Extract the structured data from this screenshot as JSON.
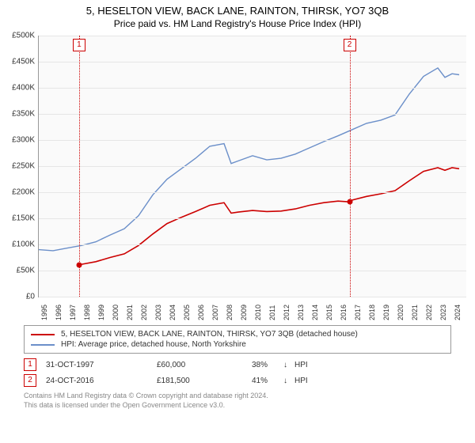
{
  "title": "5, HESELTON VIEW, BACK LANE, RAINTON, THIRSK, YO7 3QB",
  "subtitle": "Price paid vs. HM Land Registry's House Price Index (HPI)",
  "chart": {
    "type": "line",
    "background_color": "#fafafa",
    "grid_color": "#e6e6e6",
    "axis_color": "#999999",
    "label_fontsize": 10,
    "y": {
      "min": 0,
      "max": 500000,
      "step": 50000,
      "prefix": "£",
      "suffix": "K",
      "ticks": [
        "£0",
        "£50K",
        "£100K",
        "£150K",
        "£200K",
        "£250K",
        "£300K",
        "£350K",
        "£400K",
        "£450K",
        "£500K"
      ]
    },
    "x": {
      "min": 1995,
      "max": 2025,
      "ticks": [
        1995,
        1996,
        1997,
        1998,
        1999,
        2000,
        2001,
        2002,
        2003,
        2004,
        2005,
        2006,
        2007,
        2008,
        2009,
        2010,
        2011,
        2012,
        2013,
        2014,
        2015,
        2016,
        2017,
        2018,
        2019,
        2020,
        2021,
        2022,
        2023,
        2024
      ]
    },
    "series": [
      {
        "name": "hpi",
        "label": "HPI: Average price, detached house, North Yorkshire",
        "color": "#6b8fc9",
        "width": 1.4,
        "data": [
          [
            1995,
            90000
          ],
          [
            1996,
            88000
          ],
          [
            1997,
            93000
          ],
          [
            1998,
            98000
          ],
          [
            1999,
            105000
          ],
          [
            2000,
            118000
          ],
          [
            2001,
            130000
          ],
          [
            2002,
            155000
          ],
          [
            2003,
            195000
          ],
          [
            2004,
            225000
          ],
          [
            2005,
            245000
          ],
          [
            2006,
            265000
          ],
          [
            2007,
            288000
          ],
          [
            2008,
            293000
          ],
          [
            2008.5,
            255000
          ],
          [
            2009,
            260000
          ],
          [
            2010,
            270000
          ],
          [
            2011,
            262000
          ],
          [
            2012,
            265000
          ],
          [
            2013,
            273000
          ],
          [
            2014,
            285000
          ],
          [
            2015,
            297000
          ],
          [
            2016,
            308000
          ],
          [
            2017,
            320000
          ],
          [
            2018,
            332000
          ],
          [
            2019,
            338000
          ],
          [
            2020,
            348000
          ],
          [
            2021,
            388000
          ],
          [
            2022,
            422000
          ],
          [
            2023,
            438000
          ],
          [
            2023.5,
            420000
          ],
          [
            2024,
            427000
          ],
          [
            2024.5,
            425000
          ]
        ]
      },
      {
        "name": "property",
        "label": "5, HESELTON VIEW, BACK LANE, RAINTON, THIRSK, YO7 3QB (detached house)",
        "color": "#cc0000",
        "width": 1.6,
        "data": [
          [
            1997.83,
            60000
          ],
          [
            1998,
            62000
          ],
          [
            1999,
            67000
          ],
          [
            2000,
            75000
          ],
          [
            2001,
            82000
          ],
          [
            2002,
            98000
          ],
          [
            2003,
            120000
          ],
          [
            2004,
            140000
          ],
          [
            2005,
            152000
          ],
          [
            2006,
            163000
          ],
          [
            2007,
            175000
          ],
          [
            2008,
            180000
          ],
          [
            2008.5,
            160000
          ],
          [
            2009,
            162000
          ],
          [
            2010,
            165000
          ],
          [
            2011,
            163000
          ],
          [
            2012,
            164000
          ],
          [
            2013,
            168000
          ],
          [
            2014,
            175000
          ],
          [
            2015,
            180000
          ],
          [
            2016,
            183000
          ],
          [
            2016.81,
            181500
          ],
          [
            2017,
            185000
          ],
          [
            2018,
            192000
          ],
          [
            2019,
            197000
          ],
          [
            2020,
            203000
          ],
          [
            2021,
            222000
          ],
          [
            2022,
            240000
          ],
          [
            2023,
            247000
          ],
          [
            2023.5,
            242000
          ],
          [
            2024,
            247000
          ],
          [
            2024.5,
            245000
          ]
        ]
      }
    ],
    "markers": [
      {
        "idx": "1",
        "x": 1997.83,
        "y": 60000,
        "color": "#cc0000"
      },
      {
        "idx": "2",
        "x": 2016.81,
        "y": 181500,
        "color": "#cc0000"
      }
    ],
    "vline_color": "#cc0000"
  },
  "legend": {
    "border_color": "#999999",
    "rows": [
      {
        "color": "#cc0000",
        "label": "5, HESELTON VIEW, BACK LANE, RAINTON, THIRSK, YO7 3QB (detached house)"
      },
      {
        "color": "#6b8fc9",
        "label": "HPI: Average price, detached house, North Yorkshire"
      }
    ]
  },
  "datapoints": [
    {
      "idx": "1",
      "date": "31-OCT-1997",
      "price": "£60,000",
      "pct": "38%",
      "arrow": "↓",
      "tag": "HPI"
    },
    {
      "idx": "2",
      "date": "24-OCT-2016",
      "price": "£181,500",
      "pct": "41%",
      "arrow": "↓",
      "tag": "HPI"
    }
  ],
  "footnote": {
    "line1": "Contains HM Land Registry data © Crown copyright and database right 2024.",
    "line2": "This data is licensed under the Open Government Licence v3.0."
  }
}
